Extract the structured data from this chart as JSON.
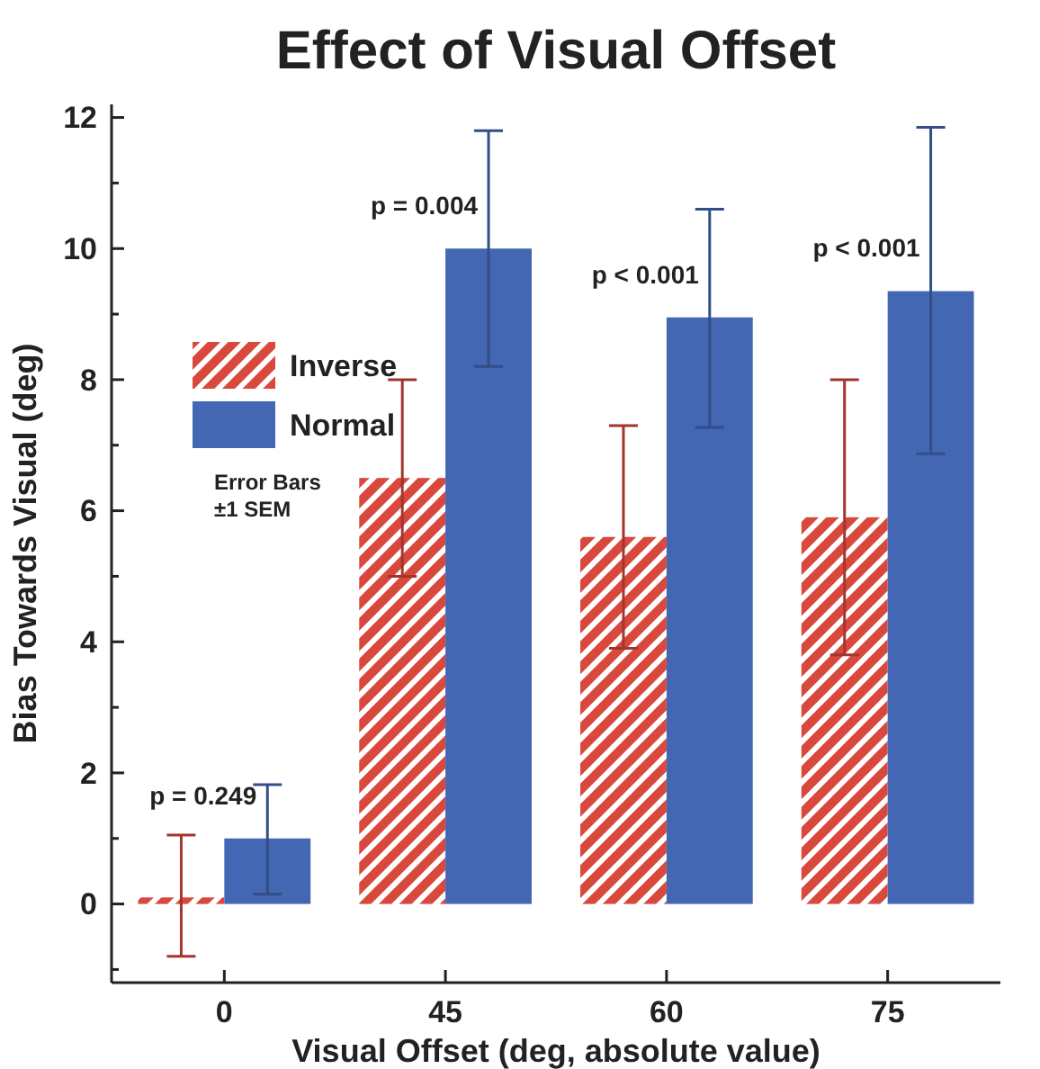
{
  "chart_data": {
    "type": "bar",
    "title": "Effect of Visual Offset",
    "xlabel": "Visual Offset (deg, absolute value)",
    "ylabel": "Bias Towards Visual (deg)",
    "categories": [
      "0",
      "45",
      "60",
      "75"
    ],
    "series": [
      {
        "name": "Inverse",
        "color": "#d8483c",
        "values": [
          0.1,
          6.5,
          5.6,
          5.9
        ],
        "errors": [
          [
            -0.8,
            1.05
          ],
          [
            5.0,
            8.0
          ],
          [
            3.9,
            7.3
          ],
          [
            3.8,
            8.0
          ]
        ]
      },
      {
        "name": "Normal",
        "color": "#4467b3",
        "values": [
          1.0,
          10.0,
          8.95,
          9.35
        ],
        "errors": [
          [
            0.15,
            1.82
          ],
          [
            8.2,
            11.8
          ],
          [
            7.27,
            10.6
          ],
          [
            6.87,
            11.85
          ]
        ]
      }
    ],
    "ylim": [
      -1.2,
      12.2
    ],
    "yticks": [
      {
        "value": -1,
        "label": null
      },
      0,
      {
        "value": 1,
        "label": null
      },
      2,
      {
        "value": 3,
        "label": null
      },
      4,
      {
        "value": 5,
        "label": null
      },
      6,
      {
        "value": 7,
        "label": null
      },
      8,
      {
        "value": 9,
        "label": null
      },
      10,
      {
        "value": 11,
        "label": null
      },
      12
    ],
    "grid": false,
    "legend": "top left",
    "annotations": [
      "p = 0.249",
      "p = 0.004",
      "p < 0.001",
      "p < 0.001",
      "Error Bars\n±1 SEM"
    ]
  }
}
